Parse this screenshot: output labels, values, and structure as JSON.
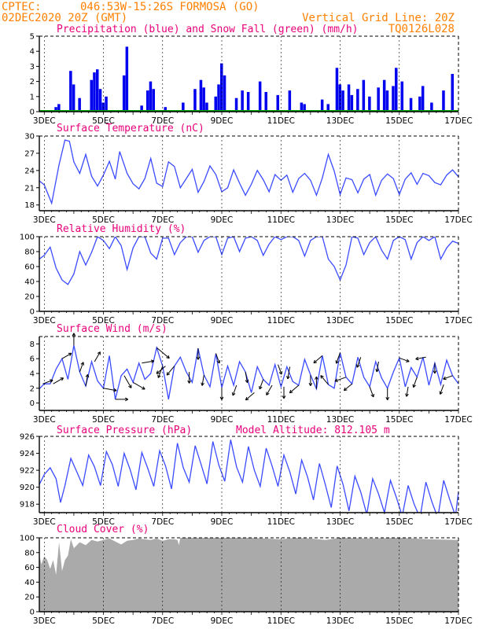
{
  "header": {
    "org": "CPTEC:",
    "location": "046:53W-15:26S  FORMOSA (GO)",
    "run_time": "02DEC2020 20Z (GMT)",
    "vgrid_note": "Vertical Grid Line: 20Z",
    "model_code": "TQ0126L028"
  },
  "colors": {
    "precip": "#0000ee",
    "snow": "#00aa00",
    "line": "#3b4bff",
    "cloud": "#aaaaaa",
    "title": "#e8007a",
    "header": "#ff8000",
    "arrow": "#000000"
  },
  "x_axis": {
    "start_day": 2.833,
    "end_day": 17.0,
    "labels": [
      "3DEC",
      "5DEC",
      "7DEC",
      "9DEC",
      "11DEC",
      "13DEC",
      "15DEC",
      "17DEC"
    ],
    "label_days": [
      3,
      5,
      7,
      9,
      11,
      13,
      15,
      17
    ]
  },
  "chart_data": [
    {
      "type": "bar",
      "title": "Precipitation (blue) and Snow Fall (green) (mm/h)",
      "ylim": [
        0,
        5
      ],
      "yticks": [
        0,
        1,
        2,
        3,
        4,
        5
      ],
      "series": [
        {
          "name": "Precipitation",
          "x_day": [
            3.4,
            3.5,
            3.9,
            4.0,
            4.2,
            4.6,
            4.7,
            4.8,
            4.9,
            5.0,
            5.1,
            5.7,
            5.8,
            6.3,
            6.5,
            6.6,
            6.7,
            7.1,
            7.7,
            8.1,
            8.3,
            8.4,
            8.5,
            8.8,
            8.9,
            9.0,
            9.1,
            9.5,
            9.7,
            9.9,
            10.3,
            10.5,
            10.9,
            11.3,
            11.7,
            11.8,
            12.4,
            12.6,
            12.9,
            13.0,
            13.1,
            13.3,
            13.4,
            13.6,
            13.8,
            14.0,
            14.3,
            14.5,
            14.6,
            14.8,
            14.9,
            15.1,
            15.4,
            15.7,
            15.8,
            16.1,
            16.5,
            16.8
          ],
          "values": [
            0.3,
            0.5,
            2.7,
            1.8,
            0.9,
            2.1,
            2.6,
            2.8,
            1.5,
            0.6,
            1.0,
            2.4,
            4.3,
            0.4,
            1.4,
            2.0,
            1.5,
            0.3,
            0.6,
            1.5,
            2.1,
            1.6,
            0.6,
            1.0,
            1.8,
            3.2,
            2.4,
            0.9,
            1.4,
            1.3,
            2.0,
            1.3,
            1.1,
            1.4,
            0.6,
            0.5,
            0.8,
            0.5,
            2.9,
            1.8,
            1.4,
            1.8,
            1.1,
            1.5,
            2.1,
            1.0,
            1.6,
            2.1,
            1.4,
            1.7,
            2.9,
            2.0,
            0.9,
            1.0,
            1.7,
            0.6,
            1.4,
            2.5
          ]
        },
        {
          "name": "Snow Fall",
          "x_day": [],
          "values": []
        }
      ]
    },
    {
      "type": "line",
      "title": "Surface Temperature (nC)",
      "ylim": [
        17,
        30
      ],
      "yticks": [
        18,
        21,
        24,
        27,
        30
      ],
      "x_day": [
        2.83,
        3.0,
        3.25,
        3.5,
        3.7,
        3.85,
        4.0,
        4.2,
        4.4,
        4.6,
        4.8,
        5.0,
        5.2,
        5.4,
        5.55,
        5.8,
        6.0,
        6.2,
        6.4,
        6.6,
        6.8,
        7.0,
        7.2,
        7.4,
        7.6,
        7.8,
        8.0,
        8.2,
        8.4,
        8.6,
        8.8,
        9.0,
        9.2,
        9.4,
        9.6,
        9.8,
        10.0,
        10.2,
        10.4,
        10.6,
        10.8,
        11.0,
        11.2,
        11.4,
        11.6,
        11.8,
        12.0,
        12.2,
        12.4,
        12.6,
        12.8,
        13.0,
        13.2,
        13.4,
        13.6,
        13.8,
        14.0,
        14.2,
        14.4,
        14.6,
        14.8,
        15.0,
        15.2,
        15.4,
        15.6,
        15.8,
        16.0,
        16.2,
        16.4,
        16.6,
        16.8,
        17.0
      ],
      "values": [
        22.2,
        21.5,
        18.3,
        25.0,
        29.3,
        29.1,
        25.5,
        23.5,
        26.8,
        23.0,
        21.3,
        23.2,
        25.6,
        22.5,
        27.3,
        23.5,
        21.7,
        20.8,
        22.6,
        26.1,
        21.8,
        21.2,
        25.5,
        24.7,
        21.0,
        22.6,
        24.2,
        20.2,
        22.1,
        24.8,
        23.3,
        20.3,
        21.0,
        24.1,
        21.8,
        19.7,
        21.6,
        24.0,
        22.4,
        20.3,
        23.3,
        22.3,
        23.2,
        20.2,
        22.6,
        23.5,
        22.3,
        19.7,
        22.7,
        26.8,
        23.9,
        19.8,
        22.7,
        22.4,
        20.1,
        22.5,
        23.3,
        19.7,
        22.3,
        23.4,
        22.6,
        19.8,
        22.5,
        23.6,
        21.6,
        23.5,
        23.1,
        21.9,
        21.5,
        23.2,
        24.1,
        22.9
      ]
    },
    {
      "type": "line",
      "title": "Relative Humidity (%)",
      "ylim": [
        0,
        100
      ],
      "yticks": [
        0,
        20,
        40,
        60,
        80,
        100
      ],
      "x_day": [
        2.83,
        3.0,
        3.2,
        3.4,
        3.6,
        3.8,
        4.0,
        4.2,
        4.4,
        4.6,
        4.8,
        5.0,
        5.2,
        5.4,
        5.6,
        5.8,
        6.0,
        6.2,
        6.4,
        6.6,
        6.8,
        7.0,
        7.2,
        7.4,
        7.6,
        7.8,
        8.0,
        8.2,
        8.4,
        8.6,
        8.8,
        9.0,
        9.2,
        9.4,
        9.6,
        9.8,
        10.0,
        10.2,
        10.4,
        10.6,
        10.8,
        11.0,
        11.2,
        11.4,
        11.6,
        11.8,
        12.0,
        12.2,
        12.4,
        12.6,
        12.8,
        13.0,
        13.2,
        13.4,
        13.6,
        13.8,
        14.0,
        14.2,
        14.4,
        14.6,
        14.8,
        15.0,
        15.2,
        15.4,
        15.6,
        15.8,
        16.0,
        16.2,
        16.4,
        16.6,
        16.8,
        17.0
      ],
      "values": [
        70,
        75,
        86,
        58,
        42,
        36,
        50,
        80,
        62,
        79,
        100,
        95,
        84,
        100,
        88,
        56,
        85,
        100,
        100,
        78,
        70,
        98,
        98,
        76,
        92,
        100,
        100,
        79,
        95,
        100,
        100,
        76,
        98,
        100,
        80,
        98,
        100,
        95,
        75,
        90,
        100,
        96,
        100,
        100,
        95,
        74,
        95,
        100,
        100,
        70,
        60,
        42,
        62,
        100,
        98,
        76,
        92,
        100,
        82,
        70,
        95,
        100,
        96,
        70,
        92,
        100,
        95,
        100,
        70,
        85,
        94,
        91
      ]
    },
    {
      "type": "line",
      "title": "Surface Wind (m/s)",
      "ylim": [
        -1,
        9
      ],
      "yticks": [
        0,
        2,
        4,
        6,
        8
      ],
      "x_day": [
        2.83,
        3.0,
        3.2,
        3.4,
        3.6,
        3.8,
        4.0,
        4.2,
        4.4,
        4.6,
        4.8,
        5.0,
        5.2,
        5.4,
        5.6,
        5.8,
        6.0,
        6.2,
        6.4,
        6.6,
        6.8,
        7.0,
        7.2,
        7.4,
        7.6,
        7.8,
        8.0,
        8.2,
        8.4,
        8.6,
        8.8,
        9.0,
        9.2,
        9.4,
        9.6,
        9.8,
        10.0,
        10.2,
        10.4,
        10.6,
        10.8,
        11.0,
        11.2,
        11.4,
        11.6,
        11.8,
        12.0,
        12.2,
        12.4,
        12.6,
        12.8,
        13.0,
        13.2,
        13.4,
        13.6,
        13.8,
        14.0,
        14.2,
        14.4,
        14.6,
        14.8,
        15.0,
        15.2,
        15.4,
        15.6,
        15.8,
        16.0,
        16.2,
        16.4,
        16.6,
        16.8,
        17.0
      ],
      "values": [
        1.9,
        2.6,
        2.6,
        4.6,
        6.0,
        3.2,
        7.8,
        4.2,
        2.3,
        5.6,
        3.0,
        2.0,
        6.4,
        0.5,
        3.7,
        4.6,
        2.8,
        5.4,
        3.2,
        4.0,
        7.5,
        5.0,
        0.5,
        5.0,
        6.2,
        4.2,
        2.8,
        7.4,
        3.8,
        2.2,
        6.7,
        2.1,
        5.0,
        2.4,
        5.6,
        4.2,
        1.4,
        4.9,
        3.2,
        2.4,
        5.2,
        2.2,
        4.9,
        2.9,
        2.4,
        5.9,
        3.8,
        1.9,
        6.4,
        2.5,
        2.0,
        6.8,
        3.5,
        2.6,
        6.2,
        3.5,
        2.2,
        5.6,
        3.4,
        2.0,
        4.2,
        6.1,
        2.2,
        4.8,
        3.5,
        6.2,
        2.4,
        5.4,
        2.5,
        5.8,
        3.7,
        2.6
      ],
      "arrows": {
        "x_day": [
          2.95,
          3.3,
          3.6,
          4.0,
          4.2,
          4.4,
          4.7,
          5.0,
          5.4,
          5.7,
          6.0,
          6.3,
          6.8,
          7.0,
          7.1,
          7.4,
          7.9,
          8.2,
          8.4,
          8.8,
          9.0,
          9.5,
          9.8,
          10.1,
          10.4,
          10.7,
          10.9,
          11.1,
          11.3,
          11.6,
          12.0,
          12.2,
          12.4,
          12.6,
          13.0,
          13.2,
          13.4,
          13.7,
          14.0,
          14.3,
          14.6,
          15.0,
          15.3,
          15.6,
          15.9,
          16.2,
          16.5,
          16.8
        ],
        "dir_deg": [
          70,
          60,
          60,
          0,
          20,
          10,
          30,
          100,
          90,
          150,
          120,
          80,
          130,
          200,
          230,
          220,
          180,
          180,
          190,
          160,
          180,
          200,
          170,
          230,
          200,
          210,
          160,
          180,
          190,
          230,
          180,
          0,
          230,
          320,
          200,
          250,
          230,
          200,
          160,
          190,
          180,
          110,
          190,
          200,
          260,
          180,
          200,
          250
        ],
        "speed": [
          2.5,
          3.0,
          2.6,
          3.2,
          2.4,
          3.0,
          2.8,
          3.6,
          3.4,
          4.0,
          3.8,
          3.2,
          5.0,
          3.3,
          3.0,
          3.0,
          2.8,
          2.8,
          2.6,
          2.4,
          3.2,
          2.6,
          2.6,
          2.8,
          2.4,
          2.8,
          2.4,
          3.0,
          3.2,
          3.0,
          2.6,
          3.2,
          2.8,
          3.0,
          2.8,
          3.0,
          2.4,
          2.6,
          2.6,
          2.4,
          3.0,
          2.4,
          2.2,
          2.6,
          2.4,
          2.4,
          2.4,
          2.2
        ]
      }
    },
    {
      "type": "line",
      "title": "Surface Pressure (hPa)",
      "annotation": "Model Altitude: 812.105 m",
      "ylim": [
        917,
        926
      ],
      "yticks": [
        918,
        920,
        922,
        924,
        926
      ],
      "x_day": [
        2.83,
        3.0,
        3.2,
        3.4,
        3.55,
        3.7,
        3.9,
        4.1,
        4.3,
        4.5,
        4.7,
        4.9,
        5.1,
        5.3,
        5.5,
        5.7,
        5.9,
        6.1,
        6.3,
        6.5,
        6.7,
        6.9,
        7.1,
        7.3,
        7.5,
        7.7,
        7.9,
        8.1,
        8.3,
        8.5,
        8.7,
        8.9,
        9.1,
        9.3,
        9.5,
        9.7,
        9.9,
        10.1,
        10.3,
        10.5,
        10.7,
        10.9,
        11.1,
        11.3,
        11.5,
        11.7,
        11.9,
        12.1,
        12.3,
        12.5,
        12.7,
        12.9,
        13.1,
        13.3,
        13.5,
        13.7,
        13.9,
        14.1,
        14.3,
        14.5,
        14.7,
        14.9,
        15.1,
        15.3,
        15.5,
        15.7,
        15.9,
        16.1,
        16.3,
        16.5,
        16.7,
        16.9,
        17.0
      ],
      "values": [
        920.3,
        921.5,
        922.3,
        921.0,
        918.2,
        920.2,
        923.4,
        921.8,
        920.2,
        923.8,
        922.4,
        920.2,
        924.2,
        922.7,
        920.1,
        924.0,
        922.1,
        919.7,
        924.1,
        922.2,
        920.1,
        924.3,
        922.5,
        919.8,
        925.2,
        922.3,
        920.6,
        924.9,
        922.7,
        920.4,
        925.4,
        922.6,
        920.7,
        925.6,
        922.4,
        920.6,
        924.8,
        922.0,
        920.1,
        924.6,
        922.5,
        920.1,
        923.8,
        921.8,
        919.2,
        923.2,
        921.2,
        918.5,
        922.8,
        920.3,
        917.6,
        922.5,
        920.3,
        917.2,
        921.3,
        919.4,
        916.8,
        921.0,
        919.2,
        917.0,
        920.8,
        918.8,
        916.6,
        920.2,
        918.0,
        916.4,
        920.6,
        918.3,
        916.4,
        920.8,
        918.6,
        916.6,
        919.5
      ]
    },
    {
      "type": "area",
      "title": "Cloud Cover (%)",
      "ylim": [
        0,
        100
      ],
      "yticks": [
        0,
        20,
        40,
        60,
        80,
        100
      ],
      "x_day": [
        2.83,
        2.9,
        3.0,
        3.1,
        3.2,
        3.3,
        3.4,
        3.5,
        3.6,
        3.7,
        3.8,
        3.9,
        4.0,
        4.2,
        4.4,
        4.6,
        4.8,
        5.0,
        5.2,
        5.4,
        5.6,
        5.8,
        6.0,
        6.2,
        6.4,
        6.6,
        6.8,
        7.0,
        7.2,
        7.4,
        7.5,
        7.55,
        7.6,
        8.0,
        9.0,
        10.0,
        11.0,
        11.5,
        12.0,
        12.5,
        13.0,
        14.0,
        15.0,
        16.0,
        17.0
      ],
      "values": [
        78,
        64,
        75,
        70,
        58,
        70,
        50,
        94,
        55,
        70,
        76,
        98,
        86,
        94,
        90,
        97,
        95,
        97,
        99,
        95,
        91,
        96,
        97,
        99,
        98,
        97,
        99,
        96,
        98,
        98,
        97,
        90,
        100,
        100,
        100,
        100,
        98,
        100,
        99,
        97,
        100,
        99,
        100,
        98,
        97
      ]
    }
  ]
}
